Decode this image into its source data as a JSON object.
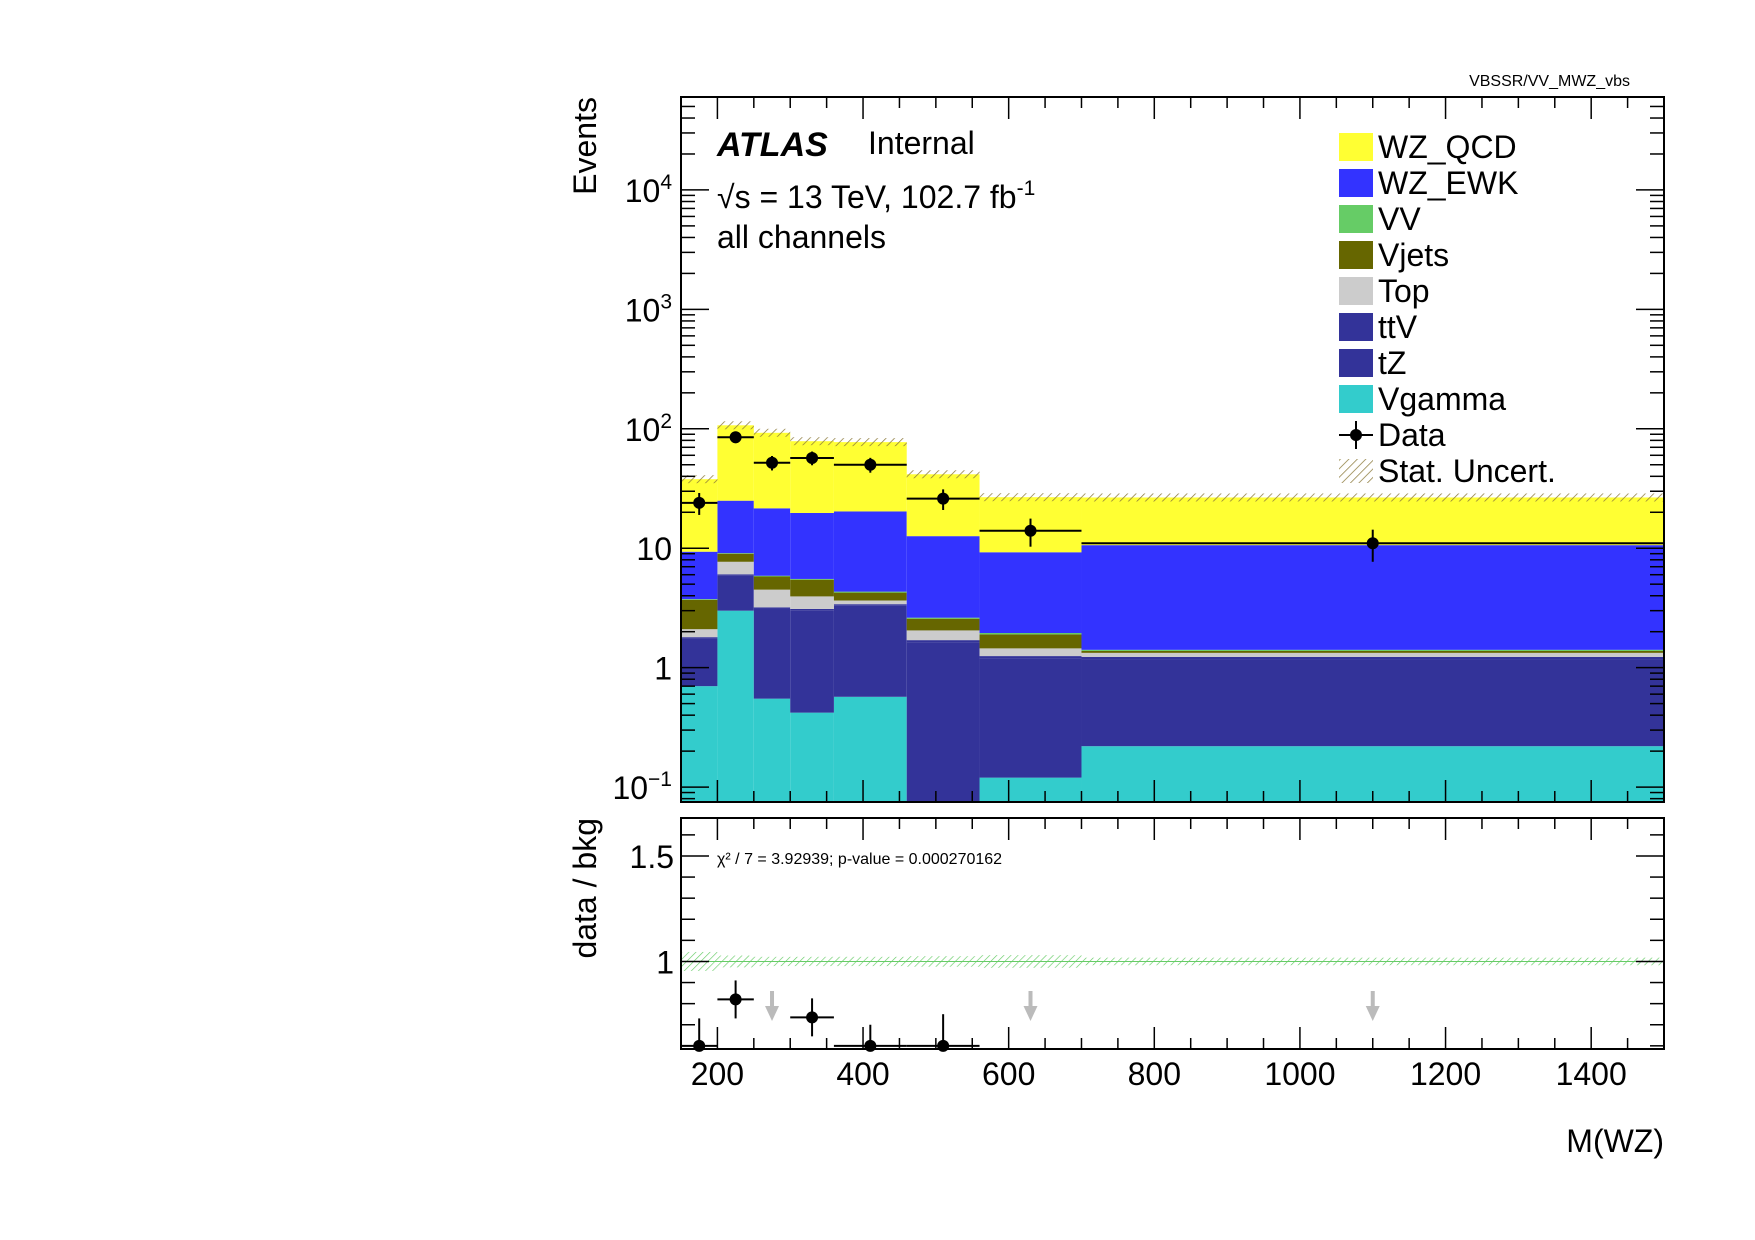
{
  "chart_data": {
    "type": "bar",
    "tag": "VBSSR/VV_MWZ_vbs",
    "atlas_label": "ATLAS",
    "atlas_status": "Internal",
    "energy_label": "√s = 13 TeV, 102.7 fb",
    "energy_label_sup": "-1",
    "channel_label": "all channels",
    "xlabel": "M(WZ)",
    "ylabel_main": "Events",
    "ylabel_ratio": "data / bkg",
    "main_yscale": "log",
    "main_ylim": [
      0.075,
      60000
    ],
    "ratio_ylim": [
      0.585,
      1.68
    ],
    "xlim": [
      150,
      1500
    ],
    "bin_edges": [
      150,
      200,
      250,
      300,
      360,
      460,
      560,
      700,
      1500
    ],
    "x_ticks": [
      200,
      400,
      600,
      800,
      1000,
      1200,
      1400
    ],
    "main_y_ticks": [
      {
        "value": 0.1,
        "label": "10",
        "sup": "−1"
      },
      {
        "value": 1,
        "label": "1",
        "sup": ""
      },
      {
        "value": 10,
        "label": "10",
        "sup": ""
      },
      {
        "value": 100,
        "label": "10",
        "sup": "2"
      },
      {
        "value": 1000,
        "label": "10",
        "sup": "3"
      },
      {
        "value": 10000,
        "label": "10",
        "sup": "4"
      }
    ],
    "ratio_y_ticks": [
      {
        "value": 1,
        "label": "1"
      },
      {
        "value": 1.5,
        "label": "1.5"
      }
    ],
    "stack": [
      {
        "name": "Vgamma",
        "color": "#33cccc",
        "values": [
          0.7,
          3.0,
          0.55,
          0.42,
          0.57,
          0,
          0.12,
          0.22
        ]
      },
      {
        "name": "tZ",
        "color": "#333399",
        "values": [
          1.05,
          2.95,
          2.55,
          2.58,
          2.73,
          1.62,
          1.07,
          0.96
        ]
      },
      {
        "name": "ttV",
        "color": "#333399",
        "values": [
          0.05,
          0.1,
          0.1,
          0.1,
          0.1,
          0.08,
          0.06,
          0.05
        ]
      },
      {
        "name": "Top",
        "color": "#cccccc",
        "values": [
          0.3,
          1.65,
          1.3,
          0.85,
          0.25,
          0.35,
          0.2,
          0.1
        ]
      },
      {
        "name": "Vjets",
        "color": "#666600",
        "values": [
          1.6,
          1.3,
          1.3,
          1.5,
          0.6,
          0.52,
          0.45,
          0.05
        ]
      },
      {
        "name": "VV",
        "color": "#66cc66",
        "values": [
          0.05,
          0.1,
          0.08,
          0.08,
          0.08,
          0.05,
          0.05,
          0.03
        ]
      },
      {
        "name": "WZ_EWK",
        "color": "#3333ff",
        "values": [
          5.6,
          15.9,
          15.7,
          14.2,
          16.0,
          10.0,
          7.3,
          9.2
        ]
      },
      {
        "name": "WZ_QCD",
        "color": "#ffff33",
        "values": [
          28.5,
          82.0,
          71.0,
          59.0,
          57.0,
          29.0,
          17.5,
          16.0
        ]
      }
    ],
    "data_points": {
      "x": [
        175,
        225,
        275,
        330,
        410,
        510,
        630,
        1100
      ],
      "xerr_low": [
        25,
        25,
        25,
        30,
        50,
        50,
        70,
        400
      ],
      "xerr_high": [
        25,
        25,
        25,
        30,
        50,
        50,
        70,
        400
      ],
      "y": [
        24,
        85,
        52,
        57,
        50,
        26,
        14,
        11
      ],
      "yerr": [
        5,
        9.2,
        7.2,
        7.5,
        7.1,
        5.1,
        3.7,
        3.3
      ]
    },
    "ratio_points": {
      "x": [
        175,
        225,
        330,
        410,
        510
      ],
      "xerr_low": [
        25,
        25,
        30,
        50,
        50
      ],
      "xerr_high": [
        25,
        25,
        30,
        50,
        50
      ],
      "y": [
        0.6,
        0.82,
        0.735,
        0.6,
        0.6
      ],
      "yerr": [
        0.13,
        0.09,
        0.09,
        0.1,
        0.15
      ]
    },
    "ratio_arrows_x": [
      275,
      630,
      1100
    ],
    "ratio_uncert_halfwidth": [
      0.045,
      0.028,
      0.022,
      0.022,
      0.022,
      0.025,
      0.03,
      0.018
    ],
    "ratio_note": "χ² / 7 = 3.92939; p-value = 0.000270162",
    "legend": [
      {
        "label": "WZ_QCD",
        "kind": "box",
        "color": "#ffff33"
      },
      {
        "label": "WZ_EWK",
        "kind": "box",
        "color": "#3333ff"
      },
      {
        "label": "VV",
        "kind": "box",
        "color": "#66cc66"
      },
      {
        "label": "Vjets",
        "kind": "box",
        "color": "#666600"
      },
      {
        "label": "Top",
        "kind": "box",
        "color": "#cccccc"
      },
      {
        "label": "ttV",
        "kind": "box",
        "color": "#333399"
      },
      {
        "label": "tZ",
        "kind": "box",
        "color": "#333399"
      },
      {
        "label": "Vgamma",
        "kind": "box",
        "color": "#33cccc"
      },
      {
        "label": "Data",
        "kind": "marker",
        "color": "#000000"
      },
      {
        "label": "Stat. Uncert.",
        "kind": "hatch",
        "color": "#8c7a3a"
      }
    ],
    "legend_position": "top-right",
    "uncert_color_main": "#8c7a3a",
    "uncert_color_ratio": "#66cc66",
    "arrow_color": "#bbbbbb"
  }
}
